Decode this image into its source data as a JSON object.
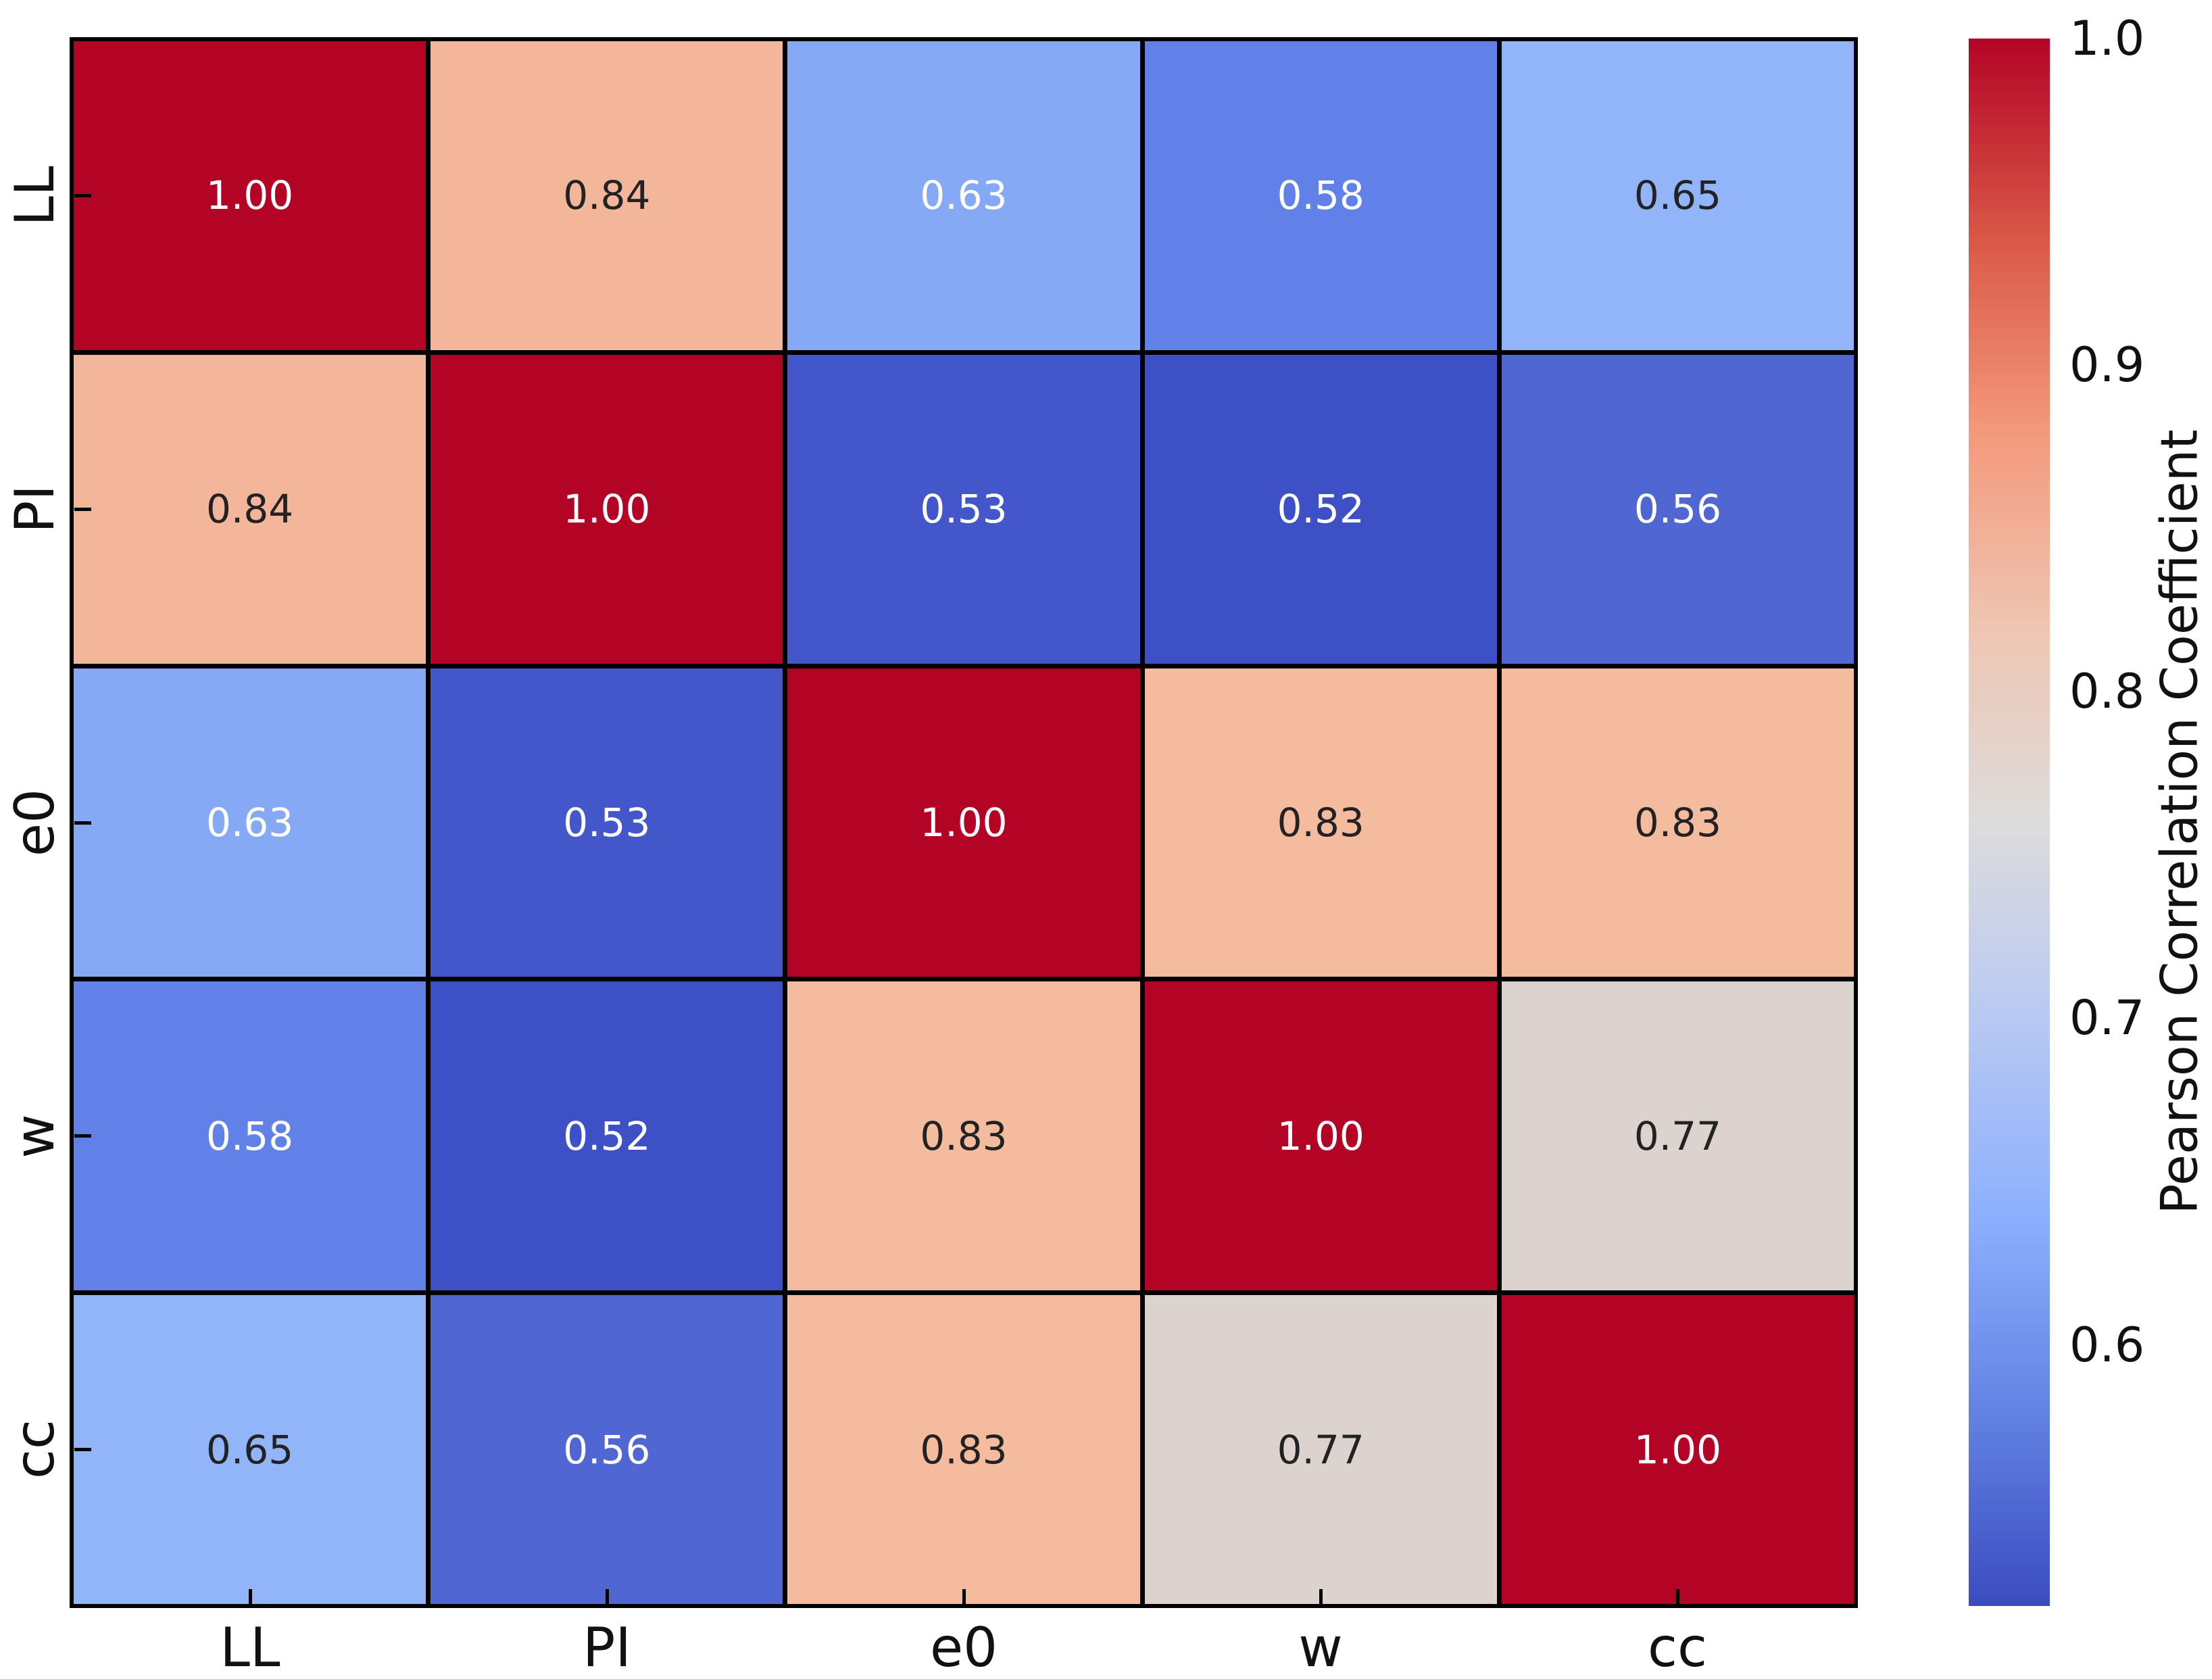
{
  "figure": {
    "background": "#ffffff"
  },
  "chart_data": {
    "type": "heatmap",
    "title": "",
    "categories": [
      "LL",
      "PI",
      "e0",
      "w",
      "cc"
    ],
    "x_tick_labels": [
      "LL",
      "PI",
      "e0",
      "w",
      "cc"
    ],
    "y_tick_labels": [
      "LL",
      "PI",
      "e0",
      "w",
      "cc"
    ],
    "matrix": [
      [
        1.0,
        0.84,
        0.63,
        0.58,
        0.65
      ],
      [
        0.84,
        1.0,
        0.53,
        0.52,
        0.56
      ],
      [
        0.63,
        0.53,
        1.0,
        0.83,
        0.83
      ],
      [
        0.58,
        0.52,
        0.83,
        1.0,
        0.77
      ],
      [
        0.65,
        0.56,
        0.83,
        0.77,
        1.0
      ]
    ],
    "annotation_text_colors": [
      [
        "light",
        "dark",
        "light",
        "light",
        "dark"
      ],
      [
        "dark",
        "light",
        "light",
        "light",
        "light"
      ],
      [
        "light",
        "light",
        "light",
        "dark",
        "dark"
      ],
      [
        "light",
        "light",
        "dark",
        "light",
        "dark"
      ],
      [
        "dark",
        "light",
        "dark",
        "dark",
        "light"
      ]
    ],
    "annotation_colors": {
      "light": "#ffffff",
      "dark": "#222222"
    },
    "value_colors": {
      "1.00": "#B40426",
      "0.84": "#F3B69A",
      "0.83": "#F5BB9F",
      "0.77": "#DCD3CF",
      "0.65": "#92B4F8",
      "0.63": "#86A9F6",
      "0.58": "#6181E8",
      "0.56": "#4F66D3",
      "0.53": "#4357CA",
      "0.52": "#3E50C6"
    },
    "grid_line_color": "#000000",
    "colorbar": {
      "label": "Pearson Correlation Coefficient",
      "vmin": 0.52,
      "vmax": 1.0,
      "ticks": [
        1.0,
        0.9,
        0.8,
        0.7,
        0.6
      ],
      "tick_labels": [
        "1.0",
        "0.9",
        "0.8",
        "0.7",
        "0.6"
      ]
    },
    "colormap": {
      "name": "coolwarm",
      "stops": [
        {
          "t": 0.0,
          "hex": "#3B4CC0"
        },
        {
          "t": 0.125,
          "hex": "#6383E3"
        },
        {
          "t": 0.25,
          "hex": "#8DB0FE"
        },
        {
          "t": 0.375,
          "hex": "#B8C9F2"
        },
        {
          "t": 0.5,
          "hex": "#DDDCDC"
        },
        {
          "t": 0.625,
          "hex": "#EFC5B1"
        },
        {
          "t": 0.75,
          "hex": "#F4987B"
        },
        {
          "t": 0.875,
          "hex": "#D85646"
        },
        {
          "t": 1.0,
          "hex": "#B40426"
        }
      ]
    }
  }
}
